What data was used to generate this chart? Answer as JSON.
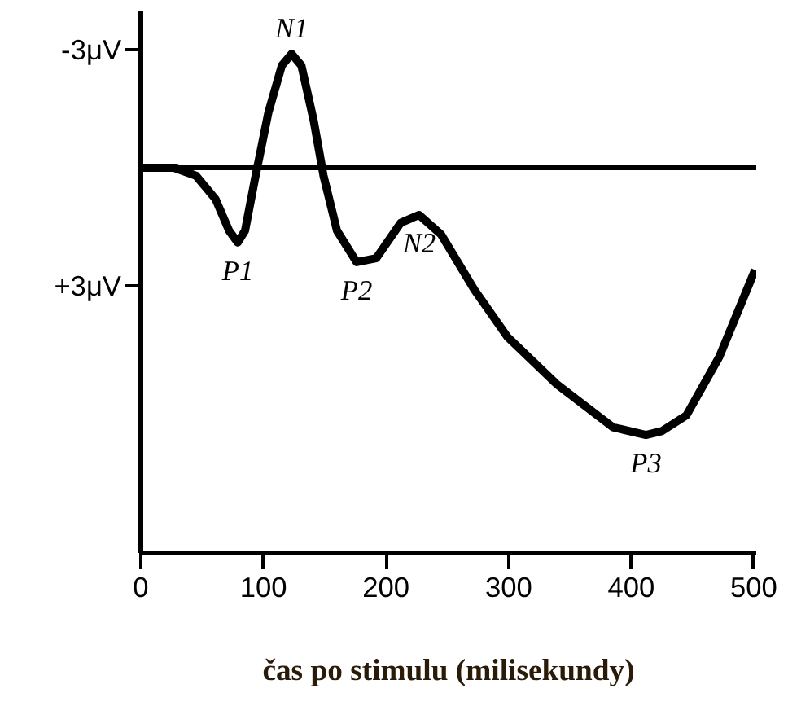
{
  "chart_data": {
    "type": "line",
    "xlabel": "čas po stimulu (milisekundy)",
    "x": [
      0,
      27,
      45,
      61,
      72,
      79,
      85,
      93,
      104,
      115,
      123,
      131,
      141,
      149,
      160,
      176,
      192,
      212,
      227,
      245,
      272,
      299,
      339,
      385,
      412,
      425,
      445,
      472,
      501
    ],
    "series": [
      {
        "color": "#000000",
        "values": [
          0,
          0,
          0.2,
          0.8,
          1.6,
          1.9,
          1.6,
          0.3,
          -1.4,
          -2.6,
          -2.9,
          -2.6,
          -1.2,
          0.2,
          1.6,
          2.4,
          2.3,
          1.4,
          1.2,
          1.7,
          3.1,
          4.3,
          5.5,
          6.6,
          6.8,
          6.7,
          6.3,
          4.8,
          2.6
        ]
      }
    ],
    "xlim": [
      0,
      502
    ],
    "ylim": [
      9.8,
      -4.0
    ],
    "xticks": [
      0,
      100,
      200,
      300,
      400,
      500
    ],
    "yticks": [
      {
        "value": -3,
        "label": "-3μV"
      },
      {
        "value": 3,
        "label": "+3μV"
      }
    ],
    "ref_lines": [
      {
        "axis": "y",
        "value": 0,
        "label": null,
        "color": "#000000"
      }
    ],
    "annotations": [
      {
        "text": "N1",
        "x": 123,
        "y": -2.9
      },
      {
        "text": "P1",
        "x": 79,
        "y": 1.9
      },
      {
        "text": "P2",
        "x": 176,
        "y": 2.4
      },
      {
        "text": "N2",
        "x": 227,
        "y": 1.2
      },
      {
        "text": "P3",
        "x": 412,
        "y": 6.8
      }
    ],
    "grid": false,
    "marker": "none",
    "line_style": "solid"
  }
}
